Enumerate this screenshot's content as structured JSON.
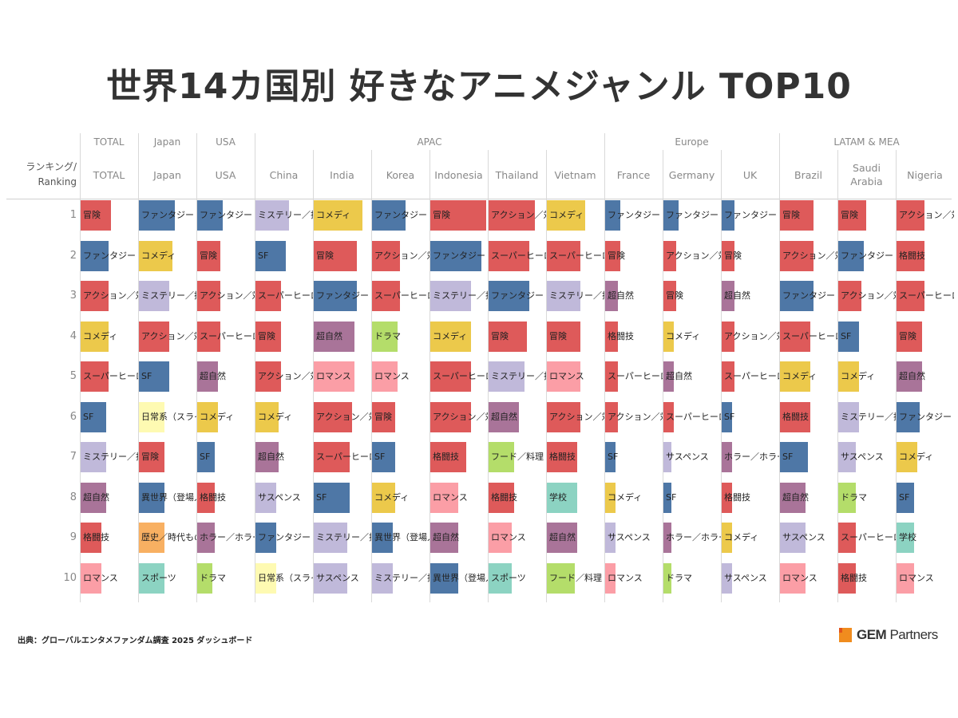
{
  "title": "世界14カ国別 好きなアニメジャンル TOP10",
  "source": "出典：グローバルエンタメファンダム調査 2025 ダッシュボード",
  "logo": {
    "text_bold": "GEM",
    "text": "Partners",
    "color": "#f08c1e"
  },
  "chart_data": {
    "type": "table",
    "title": "世界14カ国別 好きなアニメジャンル TOP10",
    "row_header": "ランキング/ Ranking",
    "ranks": [
      "1",
      "2",
      "3",
      "4",
      "5",
      "6",
      "7",
      "8",
      "9",
      "10"
    ],
    "groups": [
      {
        "name": "TOTAL",
        "span": 1
      },
      {
        "name": "Japan",
        "span": 1
      },
      {
        "name": "USA",
        "span": 1
      },
      {
        "name": "APAC",
        "span": 6
      },
      {
        "name": "Europe",
        "span": 3
      },
      {
        "name": "LATAM & MEA",
        "span": 3
      }
    ],
    "genre_colors": {
      "冒険": "#de5a5a",
      "アクション／対": "#de5a5a",
      "スーパーヒーロー": "#de5a5a",
      "格闘技": "#de5a5a",
      "ファンタジー": "#4e77a6",
      "SF": "#4e77a6",
      "異世界（登場人": "#4e77a6",
      "コメディ": "#ecc94b",
      "ミステリー／探": "#c0b9da",
      "サスペンス": "#c0b9da",
      "超自然": "#a97499",
      "ホラー／ホラー": "#a97499",
      "ロマンス": "#fb9ea6",
      "日常系（スライ": "#fefab2",
      "歴史／時代もの": "#f8b062",
      "スポーツ": "#8cd3c2",
      "学校": "#8cd3c2",
      "ドラマ": "#b4dd6a",
      "フード／料理": "#b4dd6a"
    },
    "columns": [
      {
        "country": "TOTAL",
        "items": [
          {
            "genre": "冒険",
            "score": 12
          },
          {
            "genre": "ファンタジー",
            "score": 11
          },
          {
            "genre": "アクション／対",
            "score": 11
          },
          {
            "genre": "コメディ",
            "score": 11
          },
          {
            "genre": "スーパーヒーロー",
            "score": 11
          },
          {
            "genre": "SF",
            "score": 10
          },
          {
            "genre": "ミステリー／探",
            "score": 10
          },
          {
            "genre": "超自然",
            "score": 10
          },
          {
            "genre": "格闘技",
            "score": 8
          },
          {
            "genre": "ロマンス",
            "score": 8
          }
        ]
      },
      {
        "country": "Japan",
        "items": [
          {
            "genre": "ファンタジー",
            "score": 14
          },
          {
            "genre": "コメディ",
            "score": 13
          },
          {
            "genre": "ミステリー／探",
            "score": 12
          },
          {
            "genre": "アクション／対",
            "score": 12
          },
          {
            "genre": "SF",
            "score": 12
          },
          {
            "genre": "日常系（スライ",
            "score": 10
          },
          {
            "genre": "冒険",
            "score": 10
          },
          {
            "genre": "異世界（登場人",
            "score": 10
          },
          {
            "genre": "歴史／時代もの",
            "score": 10
          },
          {
            "genre": "スポーツ",
            "score": 10
          }
        ]
      },
      {
        "country": "USA",
        "items": [
          {
            "genre": "ファンタジー",
            "score": 10
          },
          {
            "genre": "冒険",
            "score": 9
          },
          {
            "genre": "アクション／対",
            "score": 9
          },
          {
            "genre": "スーパーヒーロー",
            "score": 9
          },
          {
            "genre": "超自然",
            "score": 8
          },
          {
            "genre": "コメディ",
            "score": 8
          },
          {
            "genre": "SF",
            "score": 7
          },
          {
            "genre": "格闘技",
            "score": 7
          },
          {
            "genre": "ホラー／ホラー",
            "score": 7
          },
          {
            "genre": "ドラマ",
            "score": 6
          }
        ]
      },
      {
        "country": "China",
        "items": [
          {
            "genre": "ミステリー／探",
            "score": 13
          },
          {
            "genre": "SF",
            "score": 12
          },
          {
            "genre": "スーパーヒーロー",
            "score": 10
          },
          {
            "genre": "冒険",
            "score": 10
          },
          {
            "genre": "アクション／対",
            "score": 10
          },
          {
            "genre": "コメディ",
            "score": 9
          },
          {
            "genre": "超自然",
            "score": 9
          },
          {
            "genre": "サスペンス",
            "score": 8
          },
          {
            "genre": "ファンタジー",
            "score": 8
          },
          {
            "genre": "日常系（スライ",
            "score": 8
          }
        ]
      },
      {
        "country": "India",
        "items": [
          {
            "genre": "コメディ",
            "score": 19
          },
          {
            "genre": "冒険",
            "score": 17
          },
          {
            "genre": "ファンタジー",
            "score": 17
          },
          {
            "genre": "超自然",
            "score": 16
          },
          {
            "genre": "ロマンス",
            "score": 16
          },
          {
            "genre": "アクション／対",
            "score": 15
          },
          {
            "genre": "スーパーヒーロー",
            "score": 14
          },
          {
            "genre": "SF",
            "score": 14
          },
          {
            "genre": "ミステリー／探",
            "score": 13
          },
          {
            "genre": "サスペンス",
            "score": 13
          }
        ]
      },
      {
        "country": "Korea",
        "items": [
          {
            "genre": "ファンタジー",
            "score": 13
          },
          {
            "genre": "アクション／対",
            "score": 11
          },
          {
            "genre": "スーパーヒーロー",
            "score": 11
          },
          {
            "genre": "ドラマ",
            "score": 10
          },
          {
            "genre": "ロマンス",
            "score": 10
          },
          {
            "genre": "冒険",
            "score": 9
          },
          {
            "genre": "SF",
            "score": 9
          },
          {
            "genre": "コメディ",
            "score": 9
          },
          {
            "genre": "異世界（登場人",
            "score": 8
          },
          {
            "genre": "ミステリー／探",
            "score": 8
          }
        ]
      },
      {
        "country": "Indonesia",
        "items": [
          {
            "genre": "冒険",
            "score": 22
          },
          {
            "genre": "ファンタジー",
            "score": 20
          },
          {
            "genre": "ミステリー／探",
            "score": 16
          },
          {
            "genre": "コメディ",
            "score": 16
          },
          {
            "genre": "スーパーヒーロー",
            "score": 16
          },
          {
            "genre": "アクション／対",
            "score": 16
          },
          {
            "genre": "格闘技",
            "score": 14
          },
          {
            "genre": "ロマンス",
            "score": 11
          },
          {
            "genre": "超自然",
            "score": 11
          },
          {
            "genre": "異世界（登場人",
            "score": 11
          }
        ]
      },
      {
        "country": "Thailand",
        "items": [
          {
            "genre": "アクション／対",
            "score": 18
          },
          {
            "genre": "スーパーヒーロー",
            "score": 16
          },
          {
            "genre": "ファンタジー",
            "score": 16
          },
          {
            "genre": "冒険",
            "score": 15
          },
          {
            "genre": "ミステリー／探",
            "score": 14
          },
          {
            "genre": "超自然",
            "score": 12
          },
          {
            "genre": "フード／料理",
            "score": 10
          },
          {
            "genre": "格闘技",
            "score": 10
          },
          {
            "genre": "ロマンス",
            "score": 9
          },
          {
            "genre": "スポーツ",
            "score": 9
          }
        ]
      },
      {
        "country": "Vietnam",
        "items": [
          {
            "genre": "コメディ",
            "score": 15
          },
          {
            "genre": "スーパーヒーロー",
            "score": 13
          },
          {
            "genre": "ミステリー／探",
            "score": 13
          },
          {
            "genre": "冒険",
            "score": 13
          },
          {
            "genre": "ロマンス",
            "score": 13
          },
          {
            "genre": "アクション／対",
            "score": 13
          },
          {
            "genre": "格闘技",
            "score": 12
          },
          {
            "genre": "学校",
            "score": 12
          },
          {
            "genre": "超自然",
            "score": 12
          },
          {
            "genre": "フード／料理",
            "score": 11
          }
        ]
      },
      {
        "country": "France",
        "items": [
          {
            "genre": "ファンタジー",
            "score": 6
          },
          {
            "genre": "冒険",
            "score": 6
          },
          {
            "genre": "超自然",
            "score": 5
          },
          {
            "genre": "格闘技",
            "score": 5
          },
          {
            "genre": "スーパーヒーロー",
            "score": 5
          },
          {
            "genre": "アクション／対",
            "score": 5
          },
          {
            "genre": "SF",
            "score": 4
          },
          {
            "genre": "コメディ",
            "score": 4
          },
          {
            "genre": "サスペンス",
            "score": 4
          },
          {
            "genre": "ロマンス",
            "score": 4
          }
        ]
      },
      {
        "country": "Germany",
        "items": [
          {
            "genre": "ファンタジー",
            "score": 6
          },
          {
            "genre": "アクション／対",
            "score": 5
          },
          {
            "genre": "冒険",
            "score": 5
          },
          {
            "genre": "コメディ",
            "score": 4
          },
          {
            "genre": "超自然",
            "score": 4
          },
          {
            "genre": "スーパーヒーロー",
            "score": 4
          },
          {
            "genre": "サスペンス",
            "score": 3
          },
          {
            "genre": "SF",
            "score": 3
          },
          {
            "genre": "ホラー／ホラー",
            "score": 3
          },
          {
            "genre": "ドラマ",
            "score": 3
          }
        ]
      },
      {
        "country": "UK",
        "items": [
          {
            "genre": "ファンタジー",
            "score": 5
          },
          {
            "genre": "冒険",
            "score": 5
          },
          {
            "genre": "超自然",
            "score": 5
          },
          {
            "genre": "アクション／対",
            "score": 5
          },
          {
            "genre": "スーパーヒーロー",
            "score": 5
          },
          {
            "genre": "SF",
            "score": 4
          },
          {
            "genre": "ホラー／ホラー",
            "score": 4
          },
          {
            "genre": "格闘技",
            "score": 4
          },
          {
            "genre": "コメディ",
            "score": 4
          },
          {
            "genre": "サスペンス",
            "score": 4
          }
        ]
      },
      {
        "country": "Brazil",
        "items": [
          {
            "genre": "冒険",
            "score": 13
          },
          {
            "genre": "アクション／対",
            "score": 13
          },
          {
            "genre": "ファンタジー",
            "score": 13
          },
          {
            "genre": "スーパーヒーロー",
            "score": 12
          },
          {
            "genre": "コメディ",
            "score": 12
          },
          {
            "genre": "格闘技",
            "score": 12
          },
          {
            "genre": "SF",
            "score": 11
          },
          {
            "genre": "超自然",
            "score": 10
          },
          {
            "genre": "サスペンス",
            "score": 10
          },
          {
            "genre": "ロマンス",
            "score": 10
          }
        ]
      },
      {
        "country": "Saudi Arabia",
        "items": [
          {
            "genre": "冒険",
            "score": 11
          },
          {
            "genre": "ファンタジー",
            "score": 10
          },
          {
            "genre": "アクション／対",
            "score": 9
          },
          {
            "genre": "SF",
            "score": 8
          },
          {
            "genre": "コメディ",
            "score": 8
          },
          {
            "genre": "ミステリー／探",
            "score": 8
          },
          {
            "genre": "サスペンス",
            "score": 7
          },
          {
            "genre": "ドラマ",
            "score": 7
          },
          {
            "genre": "スーパーヒーロー",
            "score": 7
          },
          {
            "genre": "格闘技",
            "score": 7
          }
        ]
      },
      {
        "country": "Nigeria",
        "items": [
          {
            "genre": "アクション／対",
            "score": 11
          },
          {
            "genre": "格闘技",
            "score": 11
          },
          {
            "genre": "スーパーヒーロー",
            "score": 11
          },
          {
            "genre": "冒険",
            "score": 10
          },
          {
            "genre": "超自然",
            "score": 10
          },
          {
            "genre": "ファンタジー",
            "score": 9
          },
          {
            "genre": "コメディ",
            "score": 8
          },
          {
            "genre": "SF",
            "score": 7
          },
          {
            "genre": "学校",
            "score": 7
          },
          {
            "genre": "ロマンス",
            "score": 7
          }
        ]
      }
    ]
  }
}
